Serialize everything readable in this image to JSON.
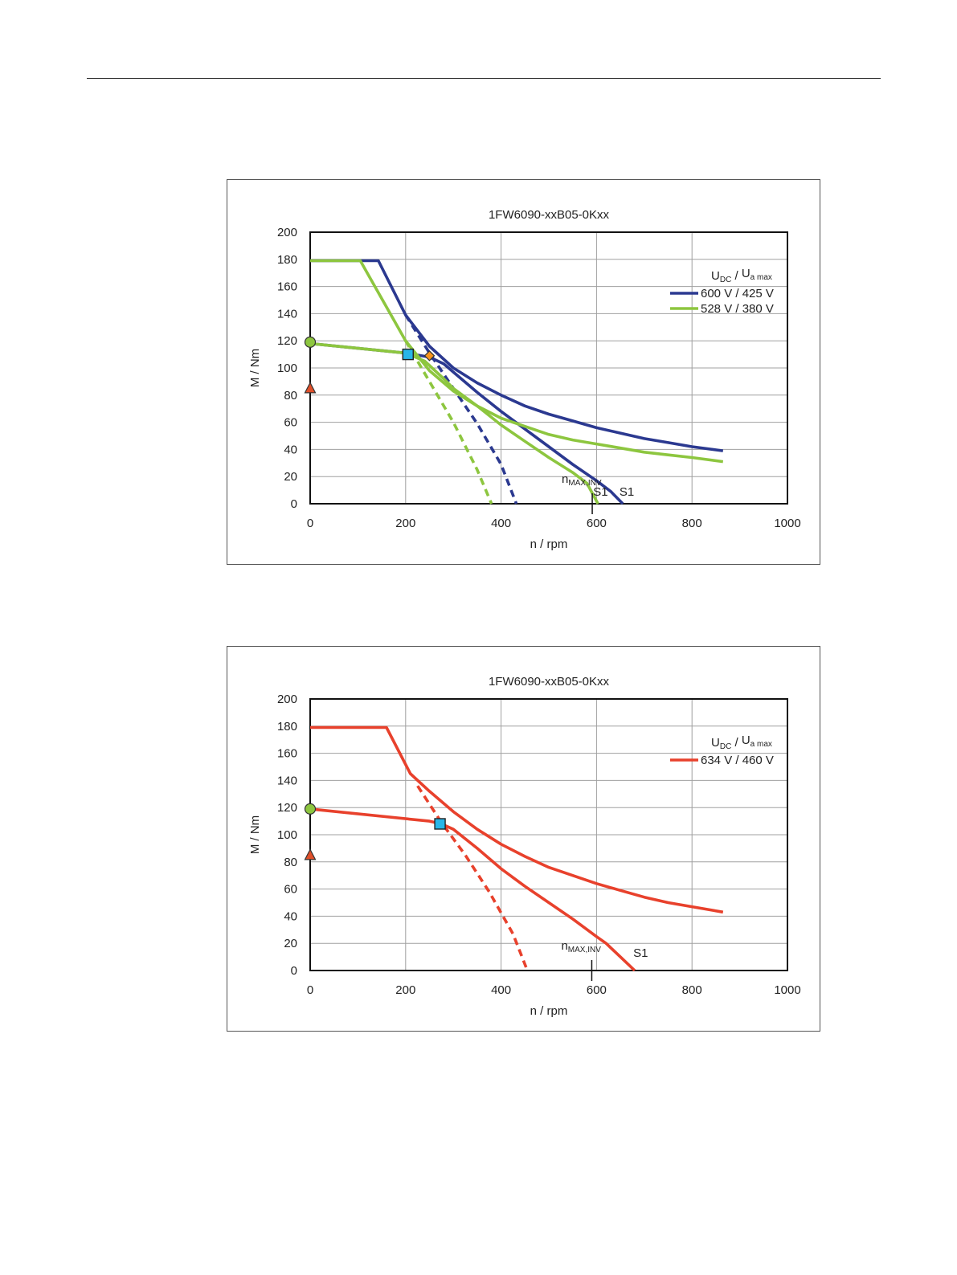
{
  "chart_data": [
    {
      "type": "line",
      "title": "1FW6090-xxB05-0Kxx",
      "xlabel": "n / rpm",
      "ylabel": "M / Nm",
      "xlim": [
        0,
        1000
      ],
      "ylim": [
        0,
        200
      ],
      "xticks": [
        0,
        200,
        400,
        600,
        800,
        1000
      ],
      "yticks": [
        0,
        20,
        40,
        60,
        80,
        100,
        120,
        140,
        160,
        180,
        200
      ],
      "grid": true,
      "legend_position": "right",
      "legend_title": {
        "main1": "U",
        "sub1": "DC",
        "sep": " / ",
        "main2": "U",
        "sub2": "a max"
      },
      "series": [
        {
          "name": "600 V / 425 V",
          "color": "#2b3990",
          "style": "solid",
          "x": [
            0,
            143,
            200,
            250,
            300,
            350,
            400,
            450,
            500,
            550,
            600,
            650,
            700,
            750,
            800,
            865
          ],
          "y": [
            179,
            179,
            139,
            116,
            100,
            89,
            80,
            72,
            66,
            61,
            56,
            52,
            48,
            45,
            42,
            39
          ]
        },
        {
          "name": "",
          "color": "#2b3990",
          "style": "solid",
          "x": [
            0,
            200,
            250,
            280,
            300,
            350,
            400,
            450,
            500,
            550,
            600,
            630,
            655
          ],
          "y": [
            118,
            111,
            108,
            103,
            97,
            82,
            68,
            55,
            42,
            29,
            17,
            9,
            0
          ]
        },
        {
          "name": "",
          "color": "#2b3990",
          "style": "dashed",
          "x": [
            200,
            250,
            300,
            350,
            400,
            432
          ],
          "y": [
            139,
            111,
            85,
            59,
            29,
            0
          ]
        },
        {
          "name": "528 V / 380 V",
          "color": "#8dc63f",
          "style": "solid",
          "x": [
            0,
            105,
            200,
            250,
            300,
            350,
            400,
            450,
            500,
            550,
            600,
            650,
            700,
            750,
            800,
            865
          ],
          "y": [
            179,
            179,
            120,
            98,
            83,
            72,
            63,
            57,
            51,
            47,
            44,
            41,
            38,
            36,
            34,
            31
          ]
        },
        {
          "name": "",
          "color": "#8dc63f",
          "style": "solid",
          "x": [
            0,
            200,
            240,
            280,
            300,
            350,
            400,
            450,
            500,
            550,
            580,
            603
          ],
          "y": [
            118,
            111,
            105,
            92,
            85,
            72,
            58,
            46,
            34,
            23,
            15,
            0
          ]
        },
        {
          "name": "",
          "color": "#8dc63f",
          "style": "dashed",
          "x": [
            200,
            250,
            300,
            350,
            380
          ],
          "y": [
            120,
            90,
            60,
            25,
            0
          ]
        }
      ],
      "markers": [
        {
          "shape": "circle",
          "x": 0,
          "y": 119,
          "color": "#8dc63f"
        },
        {
          "shape": "triangle",
          "x": 0,
          "y": 85,
          "color": "#e0502a"
        },
        {
          "shape": "square",
          "x": 205,
          "y": 110,
          "color": "#29b6e8"
        },
        {
          "shape": "diamond",
          "x": 250,
          "y": 109,
          "color": "#f7941d"
        }
      ],
      "annotations": [
        {
          "id": "s1-a",
          "text": "S1",
          "x": 593,
          "y": 6
        },
        {
          "id": "s1-b",
          "text": "S1",
          "x": 648,
          "y": 6
        }
      ],
      "nmax": {
        "main": "n",
        "sub": "MAX,INV",
        "x": 591
      }
    },
    {
      "type": "line",
      "title": "1FW6090-xxB05-0Kxx",
      "xlabel": "n / rpm",
      "ylabel": "M / Nm",
      "xlim": [
        0,
        1000
      ],
      "ylim": [
        0,
        200
      ],
      "xticks": [
        0,
        200,
        400,
        600,
        800,
        1000
      ],
      "yticks": [
        0,
        20,
        40,
        60,
        80,
        100,
        120,
        140,
        160,
        180,
        200
      ],
      "grid": true,
      "legend_position": "right",
      "legend_title": {
        "main1": "U",
        "sub1": "DC",
        "sep": " / ",
        "main2": "U",
        "sub2": "a max"
      },
      "series": [
        {
          "name": "634 V / 460 V",
          "color": "#e8412c",
          "style": "solid",
          "x": [
            0,
            160,
            210,
            250,
            300,
            350,
            400,
            450,
            500,
            550,
            600,
            650,
            700,
            750,
            800,
            865
          ],
          "y": [
            179,
            179,
            145,
            132,
            117,
            104,
            93,
            84,
            76,
            70,
            64,
            59,
            54,
            50,
            47,
            43
          ]
        },
        {
          "name": "",
          "color": "#e8412c",
          "style": "solid",
          "x": [
            0,
            250,
            275,
            300,
            350,
            400,
            450,
            500,
            550,
            600,
            620,
            650,
            680
          ],
          "y": [
            119,
            110,
            108,
            104,
            90,
            75,
            62,
            50,
            38,
            25,
            20,
            10,
            0
          ]
        },
        {
          "name": "",
          "color": "#e8412c",
          "style": "dashed",
          "x": [
            225,
            275,
            325,
            375,
            425,
            455
          ],
          "y": [
            136,
            109,
            85,
            58,
            27,
            0
          ]
        }
      ],
      "markers": [
        {
          "shape": "circle",
          "x": 0,
          "y": 119,
          "color": "#8dc63f"
        },
        {
          "shape": "triangle",
          "x": 0,
          "y": 85,
          "color": "#e0502a"
        },
        {
          "shape": "square",
          "x": 272,
          "y": 108,
          "color": "#29b6e8"
        }
      ],
      "annotations": [
        {
          "id": "s1-a",
          "text": "S1",
          "x": 677,
          "y": 10
        }
      ],
      "nmax": {
        "main": "n",
        "sub": "MAX,INV",
        "x": 590
      }
    }
  ]
}
